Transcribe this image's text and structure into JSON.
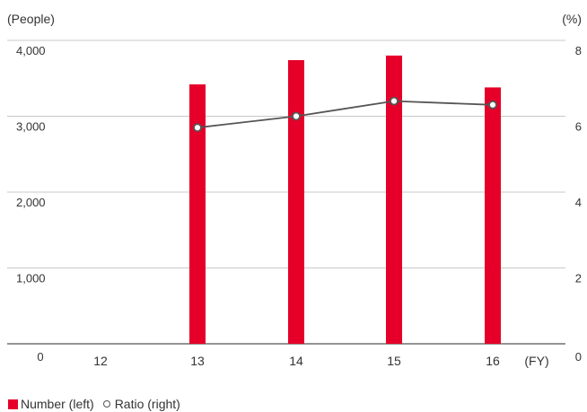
{
  "chart_data": {
    "type": "bar",
    "left_axis_unit": "(People)",
    "right_axis_unit": "(%)",
    "x_axis_unit": "(FY)",
    "categories": [
      "12",
      "13",
      "14",
      "15",
      "16"
    ],
    "y_left_ticks": [
      "0",
      "1,000",
      "2,000",
      "3,000",
      "4,000"
    ],
    "y_right_ticks": [
      "0",
      "2",
      "4",
      "6",
      "8"
    ],
    "ylim_left": [
      0,
      4000
    ],
    "ylim_right": [
      0,
      8
    ],
    "grid": true,
    "legend_placement": "bottom-left",
    "series": [
      {
        "name": "Number (left)",
        "type": "bar",
        "axis": "left",
        "color": "#e60029",
        "values": [
          null,
          3420,
          3740,
          3800,
          3380
        ]
      },
      {
        "name": "Ratio (right)",
        "type": "line",
        "axis": "right",
        "color": "#555555",
        "values": [
          null,
          5.7,
          6.0,
          6.4,
          6.3
        ]
      }
    ]
  }
}
